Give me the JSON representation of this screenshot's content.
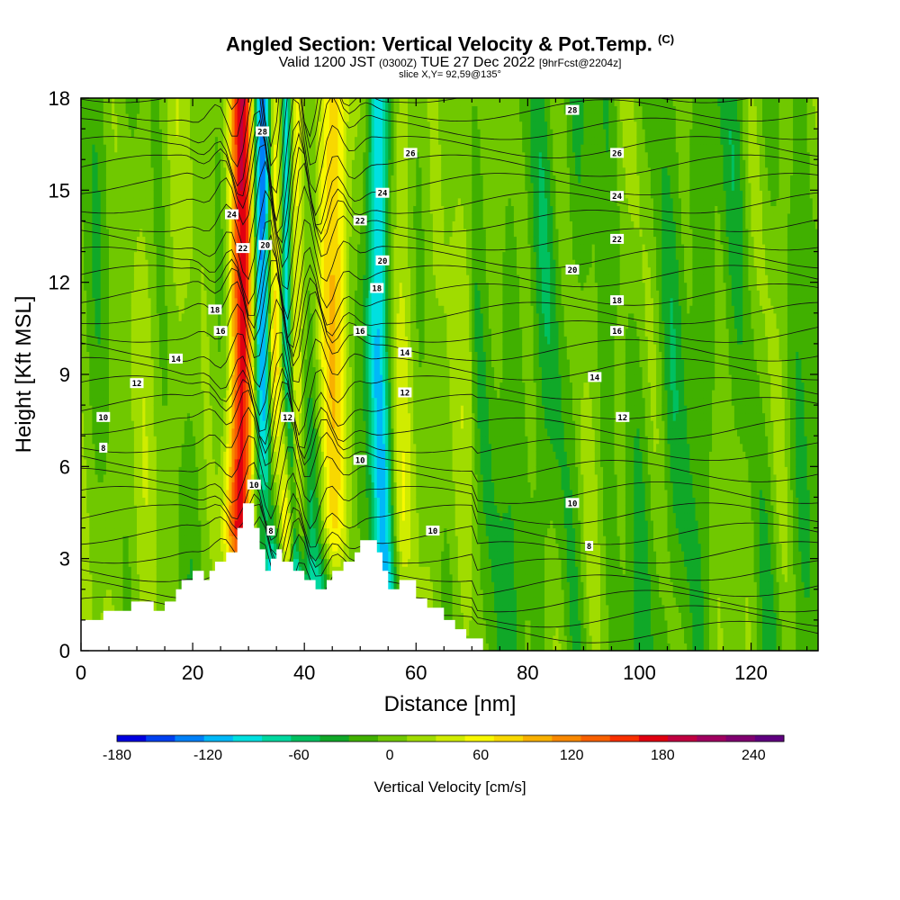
{
  "header": {
    "title": "Angled Section: Vertical Velocity & Pot.Temp.",
    "title_units": "(C)",
    "valid_a": "Valid 1200 JST",
    "valid_z": "(0300Z)",
    "valid_b": "TUE 27 Dec 2022",
    "fcst": "[9hrFcst@2204z]",
    "slice": "slice X,Y= 92,59@135°"
  },
  "chart_data": {
    "type": "heatmap",
    "title": "Angled Section: Vertical Velocity & Pot.Temp. (C)",
    "xlabel": "Distance [nm]",
    "ylabel": "Height [Kft MSL]",
    "xlim": [
      0,
      132
    ],
    "ylim": [
      0,
      18
    ],
    "x_ticks": [
      "0",
      "20",
      "40",
      "60",
      "80",
      "100",
      "120"
    ],
    "y_ticks": [
      "0",
      "3",
      "6",
      "9",
      "12",
      "15",
      "18"
    ],
    "colorbar": {
      "title": "Vertical Velocity [cm/s]",
      "labels": [
        "-180",
        "-120",
        "-60",
        "0",
        "60",
        "120",
        "180",
        "240"
      ],
      "values": [
        -180,
        -120,
        -60,
        0,
        60,
        120,
        180,
        240
      ],
      "min": -180,
      "max": 260,
      "colors": [
        "#0000e0",
        "#0040f0",
        "#0080f8",
        "#00b8f8",
        "#00e0e0",
        "#00d8a0",
        "#00c060",
        "#10a828",
        "#40b000",
        "#70c800",
        "#a0dc00",
        "#d0ec00",
        "#f8f800",
        "#f8d800",
        "#f8b000",
        "#f88800",
        "#f86000",
        "#f83000",
        "#e00010",
        "#c00040",
        "#a00060",
        "#800070",
        "#600080"
      ]
    },
    "updraft_cores": [
      {
        "x": 29,
        "w": 2.5,
        "value": 180
      },
      {
        "x": 34.5,
        "w": 1.5,
        "value": 100
      },
      {
        "x": 38.5,
        "w": 2.0,
        "value": 110
      },
      {
        "x": 45,
        "w": 3.5,
        "value": 70
      },
      {
        "x": 58,
        "w": 2.5,
        "value": 35
      }
    ],
    "downdraft_cores": [
      {
        "x": 32.5,
        "w": 1.8,
        "value": -170
      },
      {
        "x": 40,
        "w": 2.5,
        "value": -80
      },
      {
        "x": 36.8,
        "w": 1.0,
        "value": -120
      },
      {
        "x": 53,
        "w": 2.0,
        "value": -100
      }
    ],
    "contour_labels": [
      {
        "text": "28",
        "x": 32.5,
        "y": 16.9
      },
      {
        "text": "28",
        "x": 88,
        "y": 17.6
      },
      {
        "text": "26",
        "x": 59,
        "y": 16.2
      },
      {
        "text": "26",
        "x": 96,
        "y": 16.2
      },
      {
        "text": "24",
        "x": 27,
        "y": 14.2
      },
      {
        "text": "24",
        "x": 54,
        "y": 14.9
      },
      {
        "text": "24",
        "x": 96,
        "y": 14.8
      },
      {
        "text": "22",
        "x": 29,
        "y": 13.1
      },
      {
        "text": "22",
        "x": 50,
        "y": 14.0
      },
      {
        "text": "22",
        "x": 96,
        "y": 13.4
      },
      {
        "text": "20",
        "x": 33,
        "y": 13.2
      },
      {
        "text": "20",
        "x": 54,
        "y": 12.7
      },
      {
        "text": "20",
        "x": 88,
        "y": 12.4
      },
      {
        "text": "18",
        "x": 24,
        "y": 11.1
      },
      {
        "text": "18",
        "x": 53,
        "y": 11.8
      },
      {
        "text": "18",
        "x": 96,
        "y": 11.4
      },
      {
        "text": "16",
        "x": 25,
        "y": 10.4
      },
      {
        "text": "16",
        "x": 50,
        "y": 10.4
      },
      {
        "text": "16",
        "x": 96,
        "y": 10.4
      },
      {
        "text": "14",
        "x": 17,
        "y": 9.5
      },
      {
        "text": "14",
        "x": 58,
        "y": 9.7
      },
      {
        "text": "14",
        "x": 92,
        "y": 8.9
      },
      {
        "text": "12",
        "x": 10,
        "y": 8.7
      },
      {
        "text": "12",
        "x": 37,
        "y": 7.6
      },
      {
        "text": "12",
        "x": 58,
        "y": 8.4
      },
      {
        "text": "12",
        "x": 97,
        "y": 7.6
      },
      {
        "text": "10",
        "x": 4,
        "y": 7.6
      },
      {
        "text": "10",
        "x": 31,
        "y": 5.4
      },
      {
        "text": "10",
        "x": 50,
        "y": 6.2
      },
      {
        "text": "10",
        "x": 63,
        "y": 3.9
      },
      {
        "text": "10",
        "x": 88,
        "y": 4.8
      },
      {
        "text": "8",
        "x": 4,
        "y": 6.6
      },
      {
        "text": "8",
        "x": 34,
        "y": 3.9
      },
      {
        "text": "8",
        "x": 91,
        "y": 3.4
      }
    ],
    "terrain": [
      [
        0,
        1.0
      ],
      [
        4,
        1.0
      ],
      [
        4,
        1.3
      ],
      [
        9,
        1.3
      ],
      [
        9,
        1.6
      ],
      [
        13,
        1.6
      ],
      [
        13,
        1.3
      ],
      [
        15,
        1.3
      ],
      [
        15,
        1.6
      ],
      [
        17,
        1.6
      ],
      [
        17,
        2.0
      ],
      [
        18,
        2.0
      ],
      [
        18,
        2.3
      ],
      [
        20,
        2.3
      ],
      [
        20,
        2.6
      ],
      [
        22,
        2.6
      ],
      [
        22,
        2.3
      ],
      [
        23,
        2.3
      ],
      [
        23,
        2.6
      ],
      [
        24,
        2.6
      ],
      [
        24,
        2.9
      ],
      [
        26,
        2.9
      ],
      [
        26,
        3.2
      ],
      [
        28,
        3.2
      ],
      [
        28,
        4.0
      ],
      [
        29,
        4.0
      ],
      [
        29,
        4.8
      ],
      [
        31,
        4.8
      ],
      [
        31,
        4.0
      ],
      [
        32,
        4.0
      ],
      [
        32,
        3.3
      ],
      [
        33,
        3.3
      ],
      [
        33,
        2.6
      ],
      [
        34,
        2.6
      ],
      [
        34,
        3.0
      ],
      [
        35,
        3.0
      ],
      [
        35,
        3.3
      ],
      [
        36,
        3.3
      ],
      [
        36,
        2.9
      ],
      [
        38,
        2.9
      ],
      [
        38,
        2.6
      ],
      [
        40,
        2.6
      ],
      [
        40,
        2.3
      ],
      [
        42,
        2.3
      ],
      [
        42,
        2.0
      ],
      [
        44,
        2.0
      ],
      [
        44,
        2.3
      ],
      [
        45,
        2.3
      ],
      [
        45,
        2.6
      ],
      [
        47,
        2.6
      ],
      [
        47,
        2.9
      ],
      [
        49,
        2.9
      ],
      [
        49,
        3.2
      ],
      [
        50,
        3.2
      ],
      [
        50,
        3.6
      ],
      [
        53,
        3.6
      ],
      [
        53,
        3.2
      ],
      [
        54,
        3.2
      ],
      [
        54,
        2.6
      ],
      [
        55,
        2.6
      ],
      [
        55,
        2.0
      ],
      [
        57,
        2.0
      ],
      [
        57,
        2.3
      ],
      [
        60,
        2.3
      ],
      [
        60,
        1.7
      ],
      [
        62,
        1.7
      ],
      [
        62,
        1.4
      ],
      [
        65,
        1.4
      ],
      [
        65,
        1.0
      ],
      [
        67,
        1.0
      ],
      [
        67,
        0.7
      ],
      [
        69,
        0.7
      ],
      [
        69,
        0.4
      ],
      [
        72,
        0.4
      ],
      [
        72,
        0
      ],
      [
        0,
        0
      ]
    ]
  }
}
